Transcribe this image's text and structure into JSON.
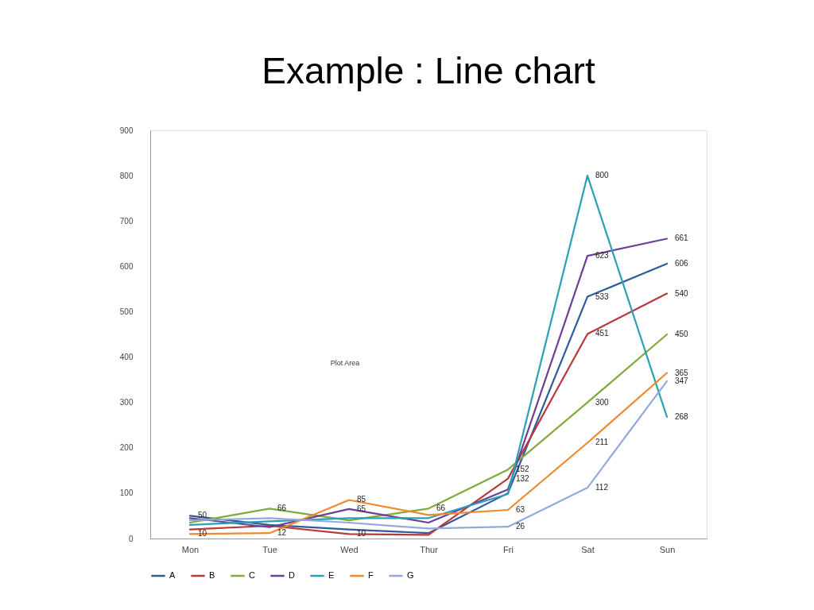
{
  "chart_data": {
    "type": "line",
    "title": "Example : Line chart",
    "categories": [
      "Mon",
      "Tue",
      "Wed",
      "Thur",
      "Fri",
      "Sat",
      "Sun"
    ],
    "series": [
      {
        "name": "A",
        "color": "#2f5b9a",
        "values": [
          50,
          30,
          20,
          12,
          100,
          533,
          606
        ],
        "value_labels": [
          "50",
          null,
          null,
          null,
          null,
          "533",
          "606"
        ]
      },
      {
        "name": "B",
        "color": "#b8383b",
        "values": [
          20,
          28,
          10,
          8,
          132,
          451,
          540
        ],
        "value_labels": [
          null,
          null,
          "10",
          null,
          "132",
          "451",
          "540"
        ]
      },
      {
        "name": "C",
        "color": "#7faa3c",
        "values": [
          35,
          66,
          40,
          66,
          152,
          300,
          450
        ],
        "value_labels": [
          null,
          "66",
          null,
          "66",
          "152",
          "300",
          "450"
        ]
      },
      {
        "name": "D",
        "color": "#6b3f94",
        "values": [
          45,
          25,
          65,
          35,
          108,
          623,
          661
        ],
        "value_labels": [
          null,
          null,
          "65",
          null,
          null,
          "623",
          "661"
        ]
      },
      {
        "name": "E",
        "color": "#2aa0b5",
        "values": [
          30,
          38,
          45,
          45,
          98,
          800,
          268
        ],
        "value_labels": [
          null,
          null,
          null,
          null,
          null,
          "800",
          "268"
        ]
      },
      {
        "name": "F",
        "color": "#f0882e",
        "values": [
          10,
          12,
          85,
          52,
          63,
          211,
          365
        ],
        "value_labels": [
          "10",
          "12",
          "85",
          null,
          "63",
          "211",
          "365"
        ]
      },
      {
        "name": "G",
        "color": "#93a9dd",
        "values": [
          40,
          45,
          35,
          22,
          26,
          112,
          347
        ],
        "value_labels": [
          null,
          null,
          null,
          null,
          "26",
          "112",
          "347"
        ]
      }
    ],
    "ylim": [
      0,
      900
    ],
    "yticks": [
      0,
      100,
      200,
      300,
      400,
      500,
      600,
      700,
      800,
      900
    ],
    "annotations": [
      "Plot Area"
    ],
    "legend": "bottom",
    "marker": "none",
    "line_style": "solid"
  }
}
